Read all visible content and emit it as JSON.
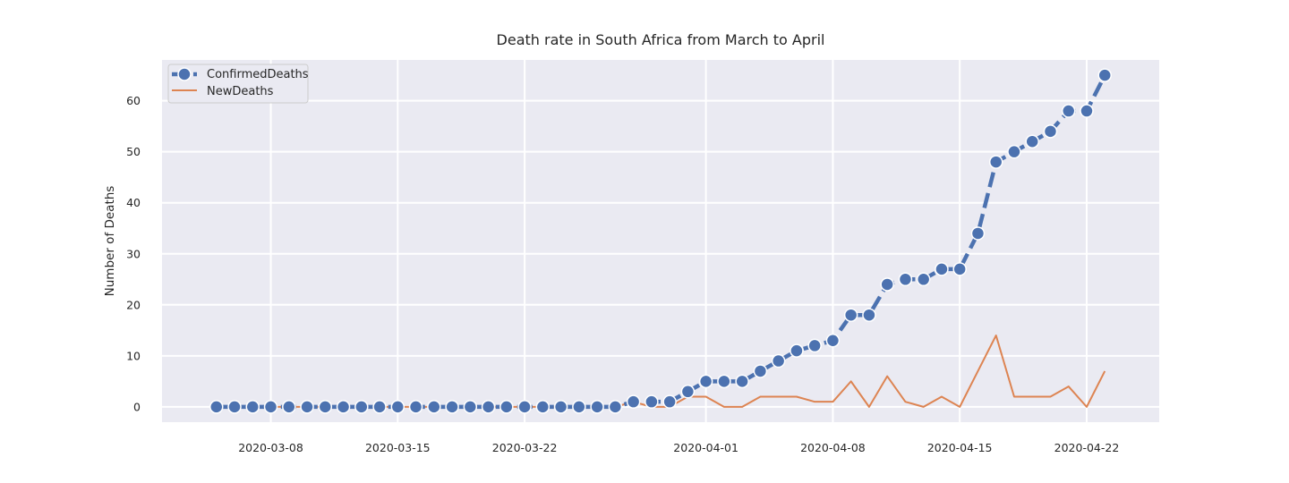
{
  "chart_data": {
    "type": "line",
    "title": "Death rate in South Africa from March to April",
    "xlabel": "",
    "ylabel": "Number of Deaths",
    "x_start": "2020-03-05",
    "x_end": "2020-04-23",
    "xlim": [
      "2020-03-02",
      "2020-04-26"
    ],
    "ylim": [
      -3,
      68
    ],
    "x_ticks": [
      "2020-03-08",
      "2020-03-15",
      "2020-03-22",
      "2020-04-01",
      "2020-04-08",
      "2020-04-15",
      "2020-04-22"
    ],
    "y_ticks": [
      0,
      10,
      20,
      30,
      40,
      50,
      60
    ],
    "grid": true,
    "legend_position": "top-left",
    "background": "#eaeaf2",
    "series": [
      {
        "name": "ConfirmedDeaths",
        "color": "#4c72b0",
        "marker": "circle",
        "style": "dashed",
        "values": [
          0,
          0,
          0,
          0,
          0,
          0,
          0,
          0,
          0,
          0,
          0,
          0,
          0,
          0,
          0,
          0,
          0,
          0,
          0,
          0,
          0,
          0,
          0,
          1,
          1,
          1,
          3,
          5,
          5,
          5,
          7,
          9,
          11,
          12,
          13,
          18,
          18,
          24,
          25,
          25,
          27,
          27,
          34,
          48,
          50,
          52,
          54,
          58,
          58,
          65
        ]
      },
      {
        "name": "NewDeaths",
        "color": "#dd8452",
        "marker": "none",
        "style": "solid",
        "values": [
          0,
          0,
          0,
          0,
          0,
          0,
          0,
          0,
          0,
          0,
          0,
          0,
          0,
          0,
          0,
          0,
          0,
          0,
          0,
          0,
          0,
          0,
          0,
          1,
          0,
          0,
          2,
          2,
          0,
          0,
          2,
          2,
          2,
          1,
          1,
          5,
          0,
          6,
          1,
          0,
          2,
          0,
          7,
          14,
          2,
          2,
          2,
          4,
          0,
          7
        ]
      }
    ]
  }
}
